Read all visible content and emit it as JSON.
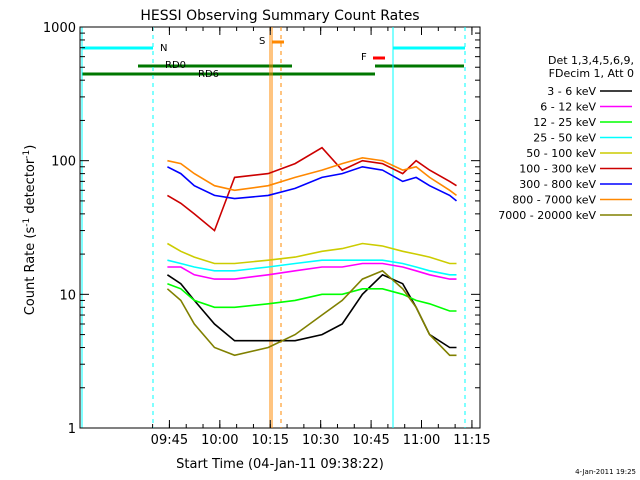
{
  "chart_data": {
    "type": "line",
    "title": "HESSI Observing Summary Count Rates",
    "xlabel": "Start Time (04-Jan-11 09:38:22)",
    "ylabel_main": "Count Rate (s",
    "ylabel_sup1": "-1",
    "ylabel_mid": " detector",
    "ylabel_sup2": "-1",
    "ylabel_end": ")",
    "yscale": "log",
    "ylim": [
      1,
      1000
    ],
    "xlim_minutes": [
      -20,
      99
    ],
    "x_ticks": [
      {
        "label": "09:45",
        "min": 6.6
      },
      {
        "label": "10:00",
        "min": 21.6
      },
      {
        "label": "10:15",
        "min": 36.6
      },
      {
        "label": "10:30",
        "min": 51.6
      },
      {
        "label": "10:45",
        "min": 66.6
      },
      {
        "label": "11:00",
        "min": 81.6
      },
      {
        "label": "11:15",
        "min": 96.6
      }
    ],
    "y_ticks": [
      {
        "label": "1",
        "v": 1
      },
      {
        "label": "10",
        "v": 10
      },
      {
        "label": "100",
        "v": 100
      },
      {
        "label": "1000",
        "v": 1000
      }
    ],
    "legend_title_1": "Det 1,3,4,5,6,9,",
    "legend_title_2": "FDecim 1, Att 0",
    "legend_placement": "right",
    "series": [
      {
        "name": "3 - 6 keV",
        "color": "#000000",
        "x": [
          6,
          10,
          14,
          20,
          26,
          36,
          44,
          52,
          58,
          64,
          70,
          76,
          80,
          84,
          90,
          92
        ],
        "y": [
          14,
          12,
          9,
          6,
          4.5,
          4.5,
          4.5,
          5,
          6,
          10,
          14,
          12,
          8,
          5,
          4,
          4
        ]
      },
      {
        "name": "6 - 12 keV",
        "color": "#ff00ff",
        "x": [
          6,
          10,
          14,
          20,
          26,
          36,
          44,
          52,
          58,
          64,
          70,
          76,
          80,
          84,
          90,
          92
        ],
        "y": [
          16,
          16,
          14,
          13,
          13,
          14,
          15,
          16,
          16,
          17,
          17,
          16,
          15,
          14,
          13,
          13
        ]
      },
      {
        "name": "12 - 25 keV",
        "color": "#00ff00",
        "x": [
          6,
          10,
          14,
          20,
          26,
          36,
          44,
          52,
          58,
          64,
          70,
          76,
          80,
          84,
          90,
          92
        ],
        "y": [
          12,
          11,
          9,
          8,
          8,
          8.5,
          9,
          10,
          10,
          11,
          11,
          10,
          9,
          8.5,
          7.5,
          7.5
        ]
      },
      {
        "name": "25 - 50 keV",
        "color": "#00ffff",
        "x": [
          6,
          10,
          14,
          20,
          26,
          36,
          44,
          52,
          58,
          64,
          70,
          76,
          80,
          84,
          90,
          92
        ],
        "y": [
          18,
          17,
          16,
          15,
          15,
          16,
          17,
          18,
          18,
          18,
          18,
          17,
          16,
          15,
          14,
          14
        ]
      },
      {
        "name": "50 - 100 keV",
        "color": "#cccc00",
        "x": [
          6,
          10,
          14,
          20,
          26,
          36,
          44,
          52,
          58,
          64,
          70,
          76,
          80,
          84,
          90,
          92
        ],
        "y": [
          24,
          21,
          19,
          17,
          17,
          18,
          19,
          21,
          22,
          24,
          23,
          21,
          20,
          19,
          17,
          17
        ]
      },
      {
        "name": "100 - 300 keV",
        "color": "#cc0000",
        "x": [
          6,
          10,
          14,
          20,
          26,
          36,
          44,
          52,
          58,
          64,
          70,
          76,
          80,
          84,
          90,
          92
        ],
        "y": [
          55,
          48,
          40,
          30,
          75,
          80,
          95,
          125,
          85,
          100,
          95,
          80,
          100,
          85,
          70,
          65
        ]
      },
      {
        "name": "300 - 800 keV",
        "color": "#0000ff",
        "x": [
          6,
          10,
          14,
          20,
          26,
          36,
          44,
          52,
          58,
          64,
          70,
          76,
          80,
          84,
          90,
          92
        ],
        "y": [
          90,
          80,
          65,
          55,
          52,
          55,
          62,
          75,
          80,
          90,
          85,
          70,
          75,
          65,
          55,
          50
        ]
      },
      {
        "name": "800 - 7000 keV",
        "color": "#ff8800",
        "x": [
          6,
          10,
          14,
          20,
          26,
          36,
          44,
          52,
          58,
          64,
          70,
          76,
          80,
          84,
          90,
          92
        ],
        "y": [
          100,
          95,
          80,
          65,
          60,
          65,
          75,
          85,
          95,
          105,
          100,
          85,
          90,
          75,
          60,
          55
        ]
      },
      {
        "name": "7000 - 20000 keV",
        "color": "#808000",
        "x": [
          6,
          10,
          14,
          20,
          26,
          36,
          44,
          52,
          58,
          64,
          70,
          76,
          80,
          84,
          90,
          92
        ],
        "y": [
          11,
          9,
          6,
          4,
          3.5,
          4,
          5,
          7,
          9,
          13,
          15,
          11,
          8,
          5,
          3.5,
          3.5
        ]
      }
    ],
    "flag_labels": {
      "n": "N",
      "rd0": "RD0",
      "rd6": "RD6",
      "s": "S",
      "f": "F"
    }
  },
  "footer_timestamp": "4-Jan-2011 19:25"
}
